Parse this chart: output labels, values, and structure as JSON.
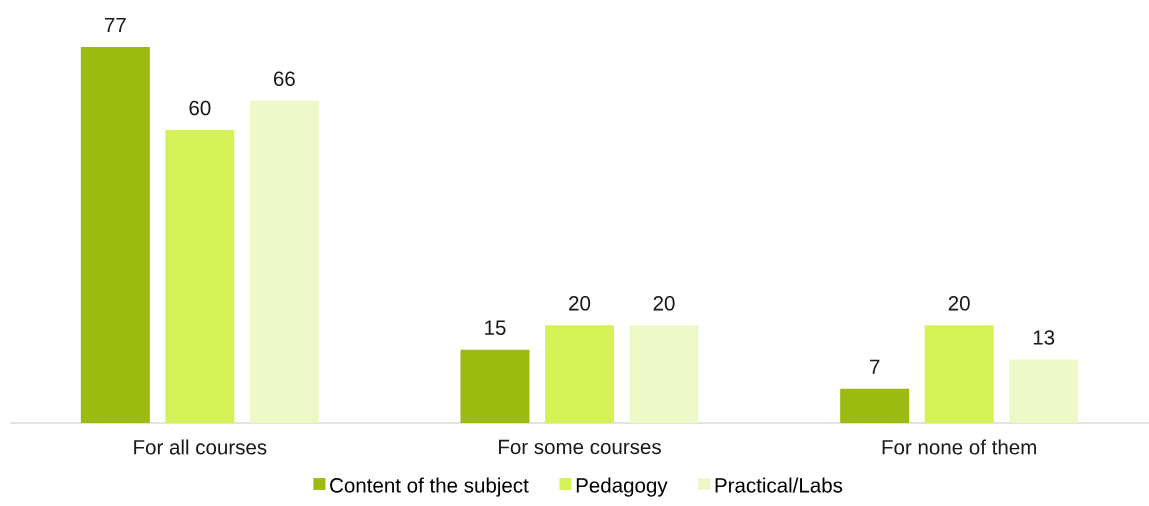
{
  "chart_data": {
    "type": "bar",
    "categories": [
      "For all courses",
      "For some courses",
      "For none of them"
    ],
    "series": [
      {
        "name": "Content of the subject",
        "color": "#9bbb11",
        "values": [
          77,
          15,
          7
        ]
      },
      {
        "name": "Pedagogy",
        "color": "#d4f255",
        "values": [
          60,
          20,
          20
        ]
      },
      {
        "name": "Practical/Labs",
        "color": "#ecf9c7",
        "values": [
          66,
          20,
          13
        ]
      }
    ],
    "data_labels": true,
    "legend": "bottom"
  }
}
